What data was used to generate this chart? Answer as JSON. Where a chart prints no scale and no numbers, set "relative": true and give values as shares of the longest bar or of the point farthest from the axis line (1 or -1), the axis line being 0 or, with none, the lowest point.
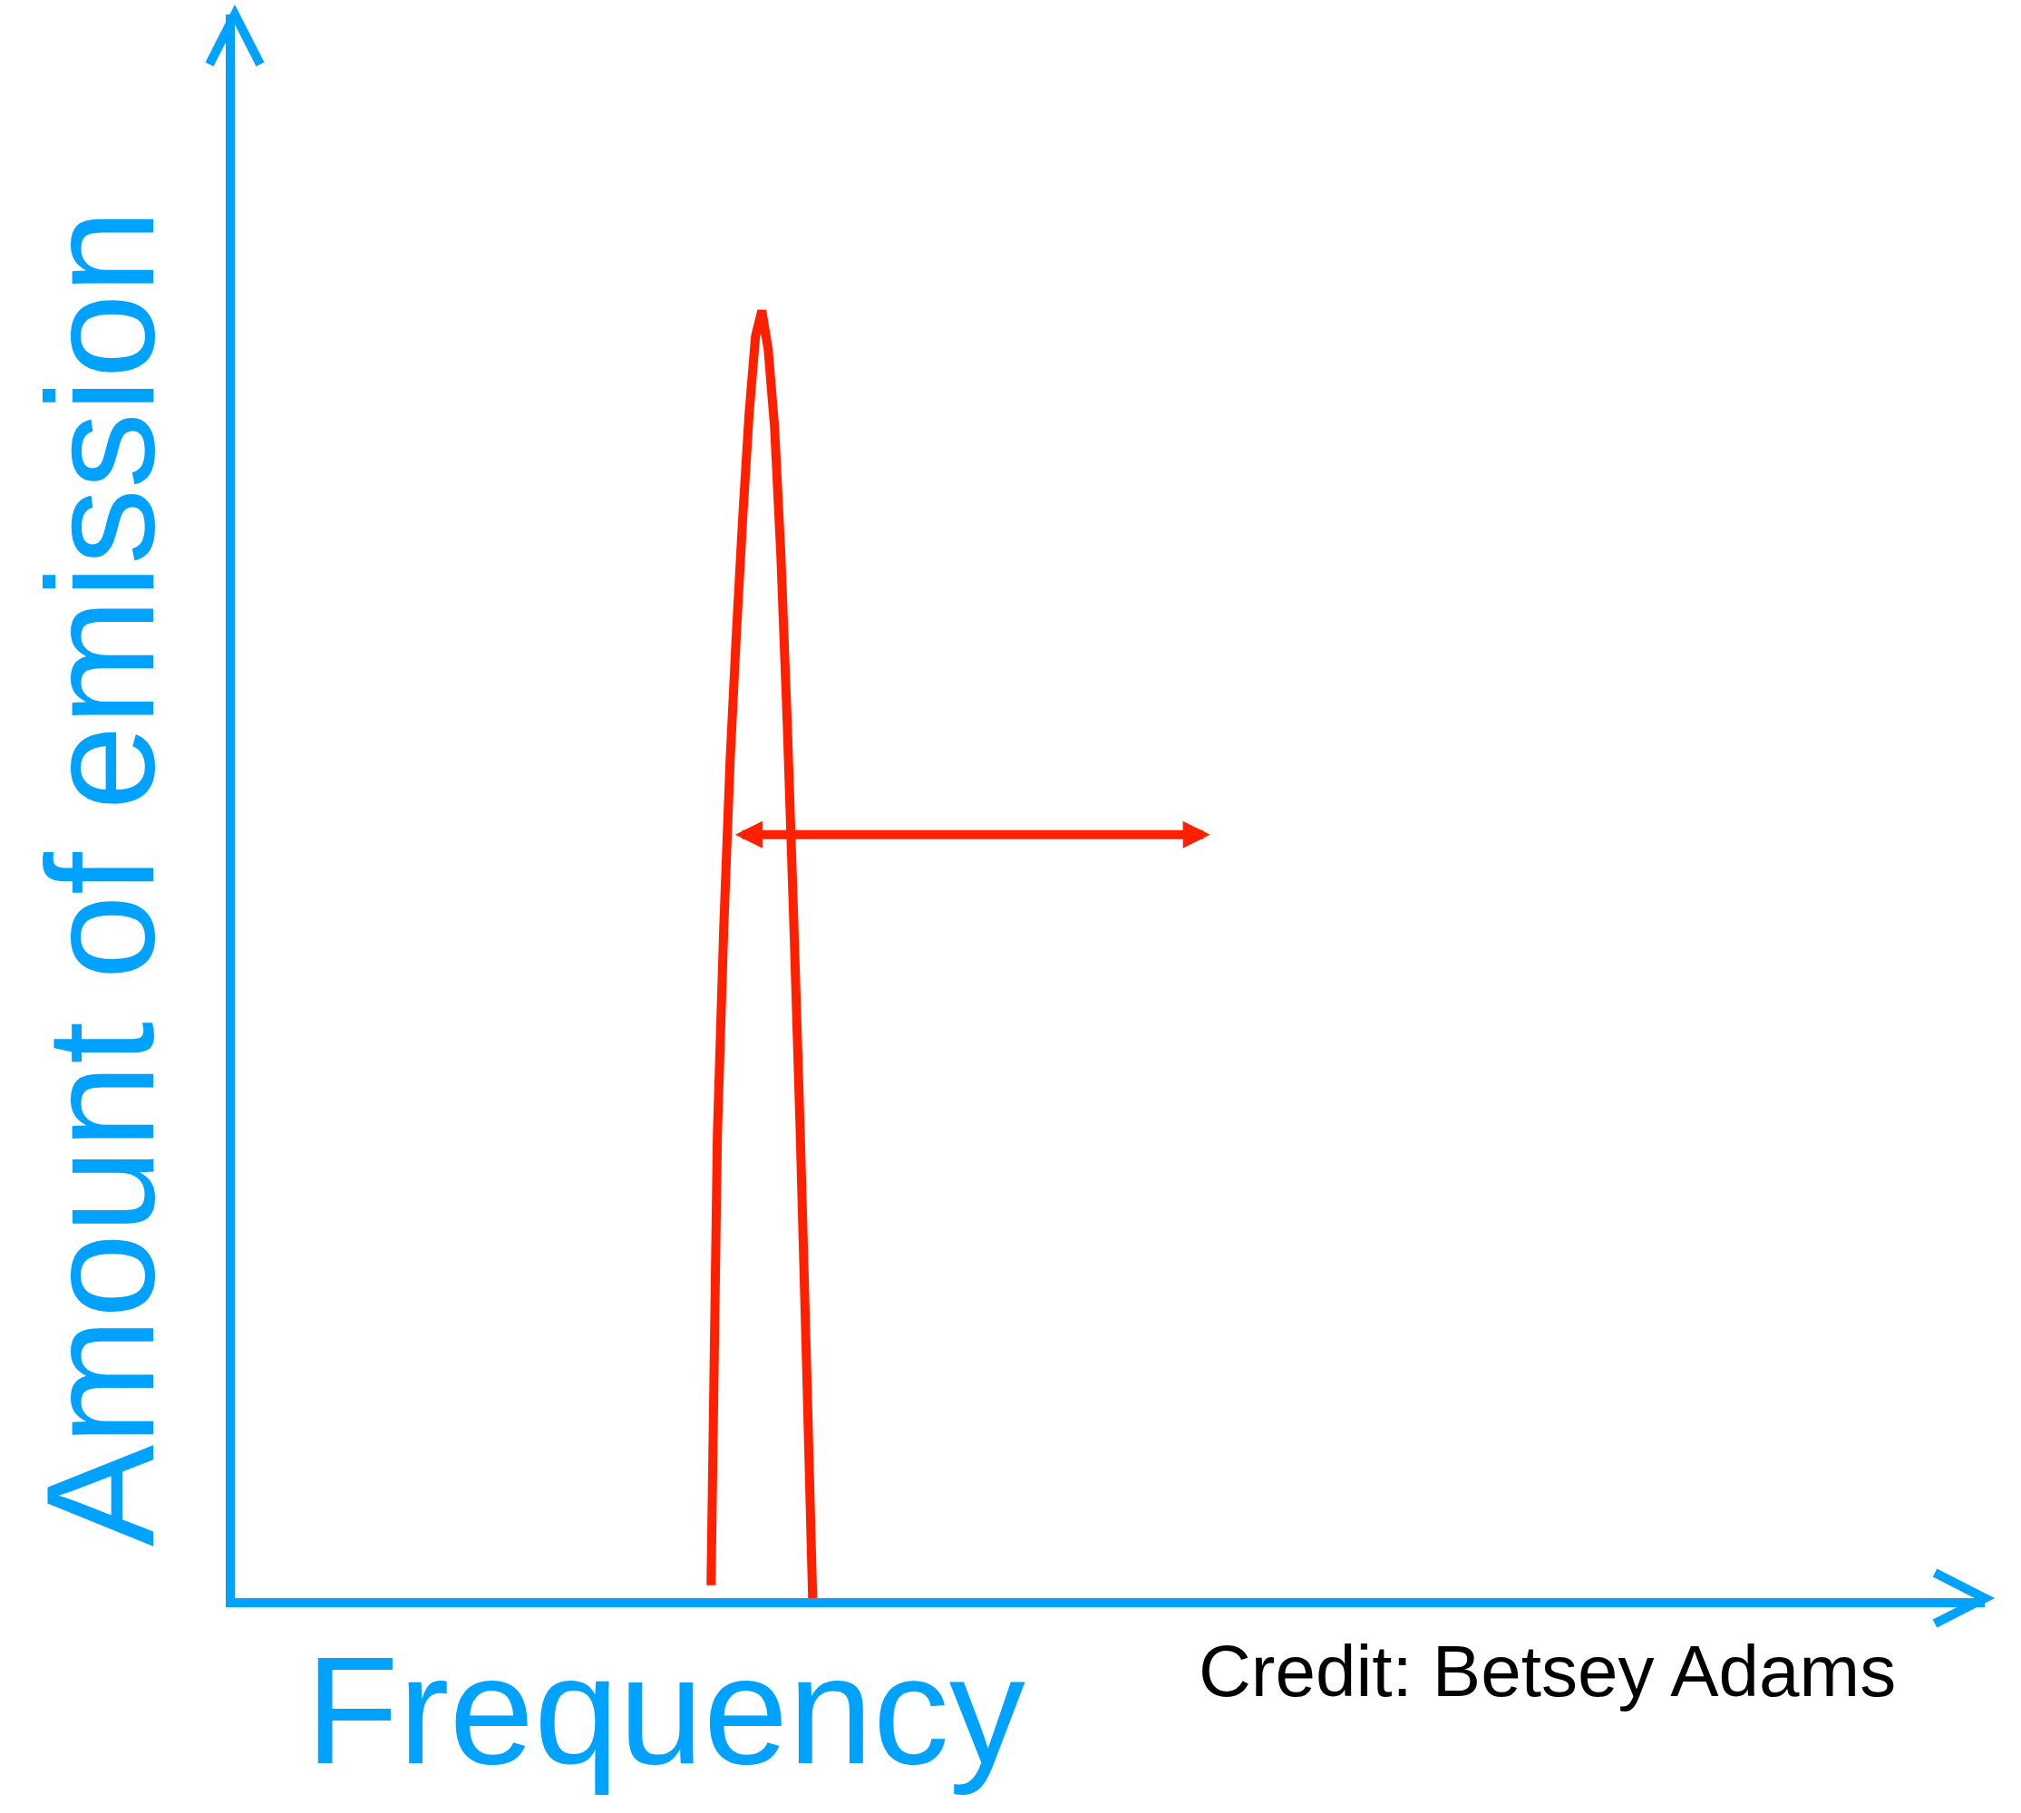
{
  "chart_data": {
    "type": "line",
    "relative": true,
    "xlabel": "Frequency",
    "ylabel": "Amount of emission",
    "annotations": [
      "Credit: Betsey Adams"
    ],
    "categories": [
      null,
      null,
      null,
      null,
      null,
      null,
      null,
      null,
      null,
      null,
      null,
      null,
      null,
      null,
      null,
      null,
      null,
      null,
      null,
      null,
      null,
      null,
      null,
      null,
      null,
      null,
      null,
      null,
      null,
      null,
      null,
      null,
      null,
      null,
      null,
      null,
      null,
      null,
      null,
      null,
      null,
      null,
      null,
      null,
      null,
      null,
      null,
      null,
      null,
      null,
      null,
      null,
      null,
      null,
      null,
      null,
      null,
      null,
      null,
      null,
      null,
      null,
      null,
      null,
      null,
      null,
      null,
      null,
      null,
      null,
      null,
      null,
      null,
      null,
      null,
      null,
      null,
      null,
      null,
      null,
      null,
      null,
      null,
      null,
      null,
      null,
      null,
      null,
      null,
      null,
      null,
      null,
      null,
      null,
      null,
      null,
      null,
      null,
      null,
      null,
      null,
      null,
      null,
      null,
      null,
      null,
      null,
      null,
      null,
      null,
      null,
      null,
      null,
      null,
      null,
      null,
      null,
      null,
      null,
      null,
      null,
      null,
      null,
      null,
      null,
      null,
      null,
      null,
      null,
      null,
      null,
      null,
      null,
      null,
      null,
      null,
      null,
      null,
      null,
      null,
      null,
      null,
      null,
      null,
      null,
      null,
      null,
      null,
      null,
      null,
      null,
      null,
      null,
      null,
      null,
      null,
      null,
      null,
      null,
      null,
      null,
      null,
      null,
      null,
      null,
      null,
      null,
      null,
      null,
      null,
      null,
      null,
      null,
      null,
      null,
      null,
      null,
      null,
      null,
      null,
      null,
      null,
      null,
      null,
      null,
      null,
      null,
      null,
      null,
      null,
      null,
      null,
      null,
      null,
      null,
      null,
      null,
      null,
      null,
      null,
      null,
      null,
      null,
      null,
      null,
      null,
      null,
      null,
      null,
      null,
      null,
      null,
      null,
      null,
      null,
      null,
      null,
      null,
      null,
      null,
      null,
      null,
      null,
      null,
      null,
      null,
      null,
      null,
      null,
      null,
      null,
      null,
      null,
      null,
      null,
      null,
      null,
      null,
      null,
      null,
      null,
      null,
      null,
      null,
      null,
      null,
      null,
      null,
      null,
      null,
      null,
      null,
      null,
      null,
      null,
      null,
      null,
      null,
      null,
      null,
      null,
      null,
      null,
      null,
      null,
      null,
      null,
      null,
      null,
      null,
      null,
      null,
      null,
      null,
      null,
      null
    ],
    "series": [
      {
        "color": "#ff2000",
        "values": [
          null,
          null,
          null,
          null,
          null,
          null,
          null,
          null,
          null,
          null,
          null,
          null,
          null,
          null,
          null,
          null,
          null,
          null,
          null,
          null,
          null,
          null,
          null,
          null,
          null,
          null,
          null,
          null,
          null,
          null,
          null,
          null,
          null,
          null,
          null,
          null,
          null,
          null,
          null,
          null,
          null,
          null,
          null,
          null,
          null,
          null,
          null,
          null,
          null,
          null,
          null,
          null,
          null,
          null,
          null,
          null,
          null,
          null,
          null,
          null,
          null,
          null,
          null,
          null,
          null,
          null,
          null,
          null,
          null,
          null,
          null,
          null,
          null,
          null,
          null,
          0.01,
          0.36,
          0.52,
          0.65,
          0.75,
          0.84,
          0.92,
          0.98,
          1,
          0.97,
          0.91,
          0.81,
          0.68,
          0.53,
          0.37,
          0.19,
          0,
          null,
          null,
          null,
          null,
          null,
          null,
          null,
          null,
          null,
          null,
          null,
          null,
          null,
          null,
          null,
          null,
          null,
          null,
          null,
          null,
          null,
          null,
          null,
          null,
          null,
          null,
          null,
          null,
          null,
          null,
          null,
          null,
          null,
          null,
          null,
          null,
          null,
          null,
          null,
          null,
          null,
          null,
          null,
          null,
          null,
          null,
          null,
          null,
          null,
          null,
          null,
          null,
          null,
          null,
          null,
          null,
          null,
          null,
          null,
          null,
          null,
          null,
          null,
          null,
          null,
          null,
          null,
          null,
          null,
          null,
          null,
          null,
          null,
          null,
          null,
          null,
          null,
          null,
          null,
          null,
          null,
          null,
          null,
          null,
          null,
          null,
          null,
          null,
          null,
          null,
          null,
          null,
          null,
          null,
          null,
          null,
          null,
          null,
          null,
          null,
          null,
          null,
          null,
          null,
          null,
          null,
          null,
          null,
          null,
          null,
          null,
          null,
          null,
          null,
          null,
          null,
          null,
          null,
          null,
          null,
          null,
          null,
          null,
          null,
          null,
          null,
          null,
          null,
          null,
          null,
          null,
          null,
          null,
          null,
          null,
          null,
          null,
          null,
          null,
          null,
          null,
          null,
          null,
          null,
          null,
          null,
          null,
          null,
          null,
          null,
          null,
          null,
          null,
          null,
          null,
          null,
          null,
          null,
          null,
          null,
          null,
          null,
          null,
          null,
          null,
          null,
          null,
          null,
          null,
          null,
          null,
          null,
          null,
          null,
          null,
          null,
          null,
          null,
          null,
          null,
          null,
          null,
          null,
          null
        ]
      }
    ],
    "legend": false,
    "marker": "none",
    "line_style": "solid"
  }
}
